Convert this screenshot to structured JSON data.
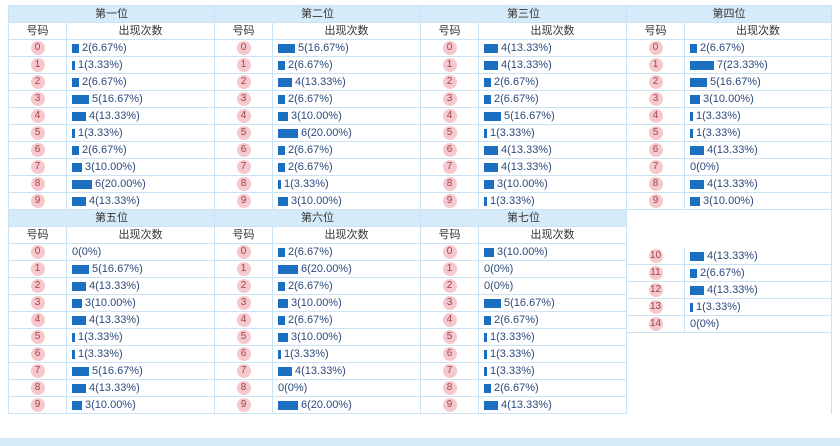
{
  "page": {
    "labels": {
      "number": "号码",
      "count": "出现次数"
    }
  },
  "colors": {
    "border": "#c9e2f4",
    "header_bg": "#d6ebfa",
    "badge_bg": "#f6c8ce",
    "badge_text": "#a04545",
    "bar": "#1a6fc0",
    "label_text": "#2c4a7c",
    "footer_bg": "#d6ebfa"
  },
  "chart_data": [
    {
      "type": "bar",
      "title": "第一位",
      "categories": [
        "0",
        "1",
        "2",
        "3",
        "4",
        "5",
        "6",
        "7",
        "8",
        "9"
      ],
      "values": [
        2,
        1,
        2,
        5,
        4,
        1,
        2,
        3,
        6,
        4
      ],
      "labels": [
        "2(6.67%)",
        "1(3.33%)",
        "2(6.67%)",
        "5(16.67%)",
        "4(13.33%)",
        "1(3.33%)",
        "2(6.67%)",
        "3(10.00%)",
        "6(20.00%)",
        "4(13.33%)"
      ],
      "xlabel": "号码",
      "ylabel": "出现次数",
      "legend": "none",
      "grid": "table"
    },
    {
      "type": "bar",
      "title": "第二位",
      "categories": [
        "0",
        "1",
        "2",
        "3",
        "4",
        "5",
        "6",
        "7",
        "8",
        "9"
      ],
      "values": [
        5,
        2,
        4,
        2,
        3,
        6,
        2,
        2,
        1,
        3
      ],
      "labels": [
        "5(16.67%)",
        "2(6.67%)",
        "4(13.33%)",
        "2(6.67%)",
        "3(10.00%)",
        "6(20.00%)",
        "2(6.67%)",
        "2(6.67%)",
        "1(3.33%)",
        "3(10.00%)"
      ],
      "xlabel": "号码",
      "ylabel": "出现次数",
      "legend": "none",
      "grid": "table"
    },
    {
      "type": "bar",
      "title": "第三位",
      "categories": [
        "0",
        "1",
        "2",
        "3",
        "4",
        "5",
        "6",
        "7",
        "8",
        "9"
      ],
      "values": [
        4,
        4,
        2,
        2,
        5,
        1,
        4,
        4,
        3,
        1
      ],
      "labels": [
        "4(13.33%)",
        "4(13.33%)",
        "2(6.67%)",
        "2(6.67%)",
        "5(16.67%)",
        "1(3.33%)",
        "4(13.33%)",
        "4(13.33%)",
        "3(10.00%)",
        "1(3.33%)"
      ],
      "xlabel": "号码",
      "ylabel": "出现次数",
      "legend": "none",
      "grid": "table"
    },
    {
      "type": "bar",
      "title": "第四位",
      "categories": [
        "0",
        "1",
        "2",
        "3",
        "4",
        "5",
        "6",
        "7",
        "8",
        "9"
      ],
      "values": [
        2,
        7,
        5,
        3,
        1,
        1,
        4,
        0,
        4,
        3
      ],
      "labels": [
        "2(6.67%)",
        "7(23.33%)",
        "5(16.67%)",
        "3(10.00%)",
        "1(3.33%)",
        "1(3.33%)",
        "4(13.33%)",
        "0(0%)",
        "4(13.33%)",
        "3(10.00%)"
      ],
      "xlabel": "号码",
      "ylabel": "出现次数",
      "legend": "none",
      "grid": "table"
    },
    {
      "type": "bar",
      "title": "第五位",
      "categories": [
        "0",
        "1",
        "2",
        "3",
        "4",
        "5",
        "6",
        "7",
        "8",
        "9"
      ],
      "values": [
        0,
        5,
        4,
        3,
        4,
        1,
        1,
        5,
        4,
        3
      ],
      "labels": [
        "0(0%)",
        "5(16.67%)",
        "4(13.33%)",
        "3(10.00%)",
        "4(13.33%)",
        "1(3.33%)",
        "1(3.33%)",
        "5(16.67%)",
        "4(13.33%)",
        "3(10.00%)"
      ],
      "xlabel": "号码",
      "ylabel": "出现次数",
      "legend": "none",
      "grid": "table"
    },
    {
      "type": "bar",
      "title": "第六位",
      "categories": [
        "0",
        "1",
        "2",
        "3",
        "4",
        "5",
        "6",
        "7",
        "8",
        "9"
      ],
      "values": [
        2,
        6,
        2,
        3,
        2,
        3,
        1,
        4,
        0,
        6
      ],
      "labels": [
        "2(6.67%)",
        "6(20.00%)",
        "2(6.67%)",
        "3(10.00%)",
        "2(6.67%)",
        "3(10.00%)",
        "1(3.33%)",
        "4(13.33%)",
        "0(0%)",
        "6(20.00%)"
      ],
      "xlabel": "号码",
      "ylabel": "出现次数",
      "legend": "none",
      "grid": "table"
    },
    {
      "type": "bar",
      "title": "第七位",
      "categories": [
        "0",
        "1",
        "2",
        "3",
        "4",
        "5",
        "6",
        "7",
        "8",
        "9",
        "10",
        "11",
        "12",
        "13",
        "14"
      ],
      "values": [
        3,
        0,
        0,
        5,
        2,
        1,
        1,
        1,
        2,
        4,
        4,
        2,
        4,
        1,
        0
      ],
      "labels": [
        "3(10.00%)",
        "0(0%)",
        "0(0%)",
        "5(16.67%)",
        "2(6.67%)",
        "1(3.33%)",
        "1(3.33%)",
        "1(3.33%)",
        "2(6.67%)",
        "4(13.33%)",
        "4(13.33%)",
        "2(6.67%)",
        "4(13.33%)",
        "1(3.33%)",
        "0(0%)"
      ],
      "xlabel": "号码",
      "ylabel": "出现次数",
      "legend": "none",
      "grid": "table",
      "layout_hint": "wraps to continuation column after category 9"
    }
  ]
}
